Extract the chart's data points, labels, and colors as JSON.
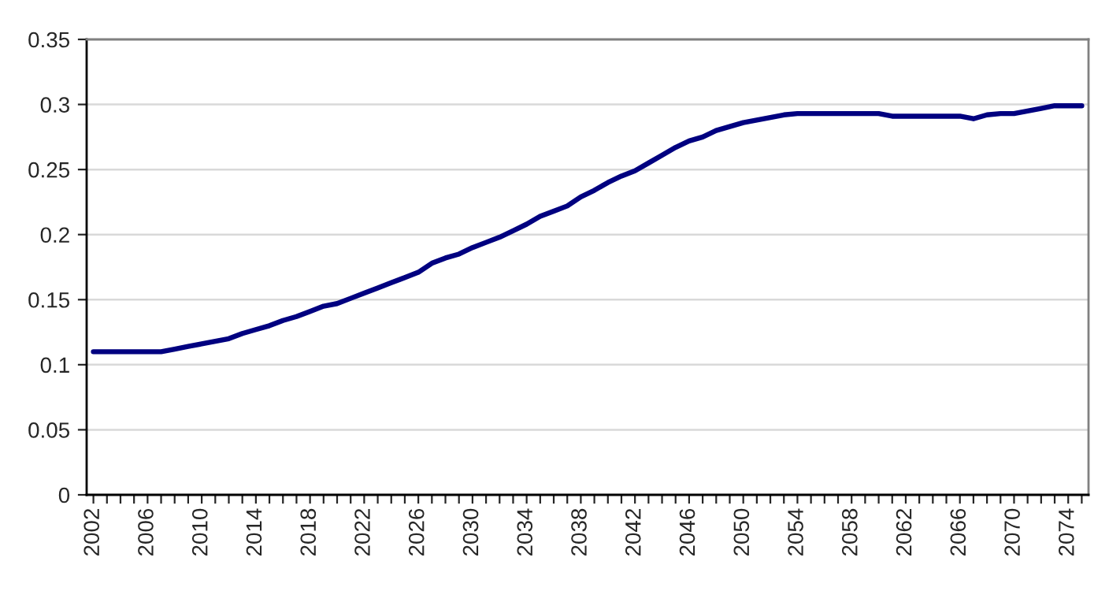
{
  "chart_data": {
    "type": "line",
    "categories": [
      "2002",
      null,
      null,
      null,
      "2006",
      null,
      null,
      null,
      "2010",
      null,
      null,
      null,
      "2014",
      null,
      null,
      null,
      "2018",
      null,
      null,
      null,
      "2022",
      null,
      null,
      null,
      "2026",
      null,
      null,
      null,
      "2030",
      null,
      null,
      null,
      "2034",
      null,
      null,
      null,
      "2038",
      null,
      null,
      null,
      "2042",
      null,
      null,
      null,
      "2046",
      null,
      null,
      null,
      "2050",
      null,
      null,
      null,
      "2054",
      null,
      null,
      null,
      "2058",
      null,
      null,
      null,
      "2062",
      null,
      null,
      null,
      "2066",
      null,
      null,
      null,
      "2070",
      null,
      null,
      null,
      "2074",
      null
    ],
    "series": [
      {
        "color": "#000080",
        "values": [
          0.11,
          0.11,
          0.11,
          0.11,
          0.11,
          0.11,
          0.112,
          0.114,
          0.116,
          0.118,
          0.12,
          0.124,
          0.127,
          0.13,
          0.134,
          0.137,
          0.141,
          0.145,
          0.147,
          0.151,
          0.155,
          0.159,
          0.163,
          0.167,
          0.171,
          0.178,
          0.182,
          0.185,
          0.19,
          0.194,
          0.198,
          0.203,
          0.208,
          0.214,
          0.218,
          0.222,
          0.229,
          0.234,
          0.24,
          0.245,
          0.249,
          0.255,
          0.261,
          0.267,
          0.272,
          0.275,
          0.28,
          0.283,
          0.286,
          0.288,
          0.29,
          0.292,
          0.293,
          0.293,
          0.293,
          0.293,
          0.293,
          0.293,
          0.293,
          0.291,
          0.291,
          0.291,
          0.291,
          0.291,
          0.291,
          0.289,
          0.292,
          0.293,
          0.293,
          0.295,
          0.297,
          0.299,
          0.299,
          0.299
        ]
      }
    ],
    "ylim": [
      0,
      0.35
    ],
    "yticks": [
      0,
      0.05,
      0.1,
      0.15,
      0.2,
      0.25,
      0.3,
      0.35
    ],
    "grid": "y",
    "marker": "none",
    "line_style": "solid"
  }
}
